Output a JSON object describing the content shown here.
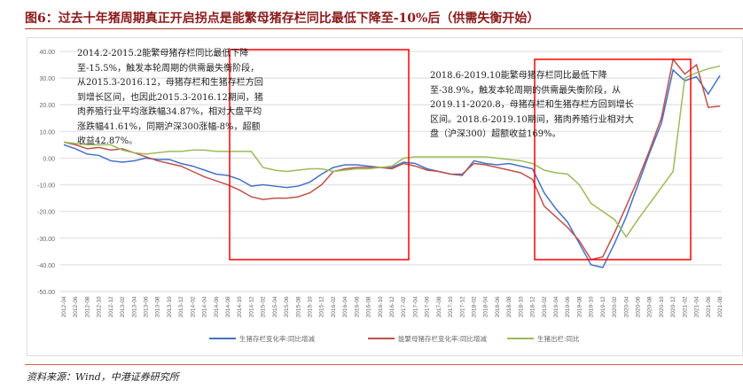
{
  "title": "图6：过去十年猪周期真正开启拐点是能繁母猪存栏同比最低下降至-10%后（供需失衡开始）",
  "source": "资料来源：Wind，中港证券研究所",
  "notes": [
    "2014.2-2015.2能繁母猪存栏同比最低下降至-15.5%，触发本轮周期的供需最失衡阶段，从2015.3-2016.12，母猪存栏和生猪存栏方回到增长区间，也因此2015.3-2016.12期间，猪肉养殖行业平均涨跌幅34.87%，相对大盘平均涨跌幅41.61%，同期沪深300涨幅-8%，超额收益42.87%。",
    "2018.6-2019.10能繁母猪存栏同比最低下降至-38.9%，触发本轮周期的供需最失衡阶段，从2019.11-2020.8，母猪存栏和生猪存栏方回到增长区间。2018.6-2019.10期间，猪肉养殖行业相对大盘（沪深300）超额收益169%。"
  ],
  "colors": {
    "blue": "#4472c4",
    "red": "#c0504d",
    "green": "#9bbb59",
    "box": "#ff0000"
  },
  "chart_data": {
    "type": "line",
    "ylim": [
      -50,
      40
    ],
    "yticks": [
      "40.00",
      "30.00",
      "20.00",
      "10.00",
      "0.00",
      "-10.00",
      "-20.00",
      "-30.00",
      "-40.00",
      "-50.00"
    ],
    "categories": [
      "2012-04",
      "2012-06",
      "2012-08",
      "2012-10",
      "2012-12",
      "2013-02",
      "2013-04",
      "2013-06",
      "2013-08",
      "2013-10",
      "2013-12",
      "2014-02",
      "2014-04",
      "2014-06",
      "2014-08",
      "2014-10",
      "2014-12",
      "2015-02",
      "2015-04",
      "2015-06",
      "2015-08",
      "2015-10",
      "2015-12",
      "2016-02",
      "2016-04",
      "2016-06",
      "2016-08",
      "2016-10",
      "2016-12",
      "2017-02",
      "2017-04",
      "2017-06",
      "2017-08",
      "2017-10",
      "2017-12",
      "2018-02",
      "2018-04",
      "2018-06",
      "2018-08",
      "2018-10",
      "2018-12",
      "2019-02",
      "2019-04",
      "2019-06",
      "2019-08",
      "2019-10",
      "2019-12",
      "2020-02",
      "2020-04",
      "2020-06",
      "2020-08",
      "2020-10",
      "2020-12",
      "2021-02",
      "2021-04",
      "2021-06",
      "2021-08"
    ],
    "series": [
      {
        "name": "生猪存栏变化率:同比增减",
        "color": "#4472c4",
        "values": [
          5,
          3.5,
          1.5,
          1,
          -1,
          -1.5,
          -1,
          0,
          -0.5,
          -0.5,
          -2,
          -3,
          -4.5,
          -6,
          -6.5,
          -8,
          -10.5,
          -10,
          -10.5,
          -11,
          -10.5,
          -9,
          -6,
          -3.5,
          -2.5,
          -2.5,
          -3,
          -3.5,
          -3.5,
          -1.5,
          -2,
          -4,
          -5,
          -6,
          -6.5,
          -1,
          -2,
          -2.5,
          -2,
          -3,
          -4,
          -13,
          -19,
          -24,
          -32,
          -40,
          -41,
          -32,
          -22,
          -10,
          2,
          13,
          33,
          29,
          30.5,
          24,
          31
        ]
      },
      {
        "name": "能繁母猪存栏变化率:同比增减",
        "color": "#c0504d",
        "values": [
          6,
          5,
          3.5,
          4,
          3,
          3.5,
          2,
          0.5,
          -1,
          -2,
          -3,
          -5,
          -7,
          -8.5,
          -10,
          -12,
          -14.5,
          -15.5,
          -15,
          -15,
          -14.5,
          -13,
          -10,
          -5,
          -4,
          -3.5,
          -3.5,
          -3.5,
          -4,
          -2,
          -3,
          -4.5,
          -5,
          -6,
          -6,
          -2,
          -2.5,
          -3.5,
          -4.5,
          -5.5,
          -8,
          -18,
          -22,
          -26,
          -31,
          -38,
          -37,
          -28,
          -18,
          -8,
          3,
          15,
          37,
          31.5,
          35,
          19,
          19.5
        ]
      },
      {
        "name": "生猪出栏:同比",
        "color": "#9bbb59",
        "values": [
          6,
          5.5,
          5,
          5,
          5,
          3,
          2,
          1.5,
          2,
          2.5,
          2.5,
          3,
          3,
          2.5,
          2.5,
          2.5,
          2.5,
          -3.5,
          -4.5,
          -5,
          -4.5,
          -4,
          -4,
          -5,
          -4.5,
          -4,
          -4,
          -3.5,
          -3,
          0,
          0.5,
          0.5,
          0.5,
          0.5,
          0.5,
          0.5,
          0.5,
          0,
          -0.5,
          -1,
          -2,
          -4.5,
          -5.5,
          -6,
          -10,
          -17,
          -20,
          -23,
          -29.5,
          -23,
          -17,
          -11,
          -5,
          30,
          32,
          33.5,
          34.5
        ]
      }
    ],
    "legend_position": "bottom",
    "grid": true
  }
}
